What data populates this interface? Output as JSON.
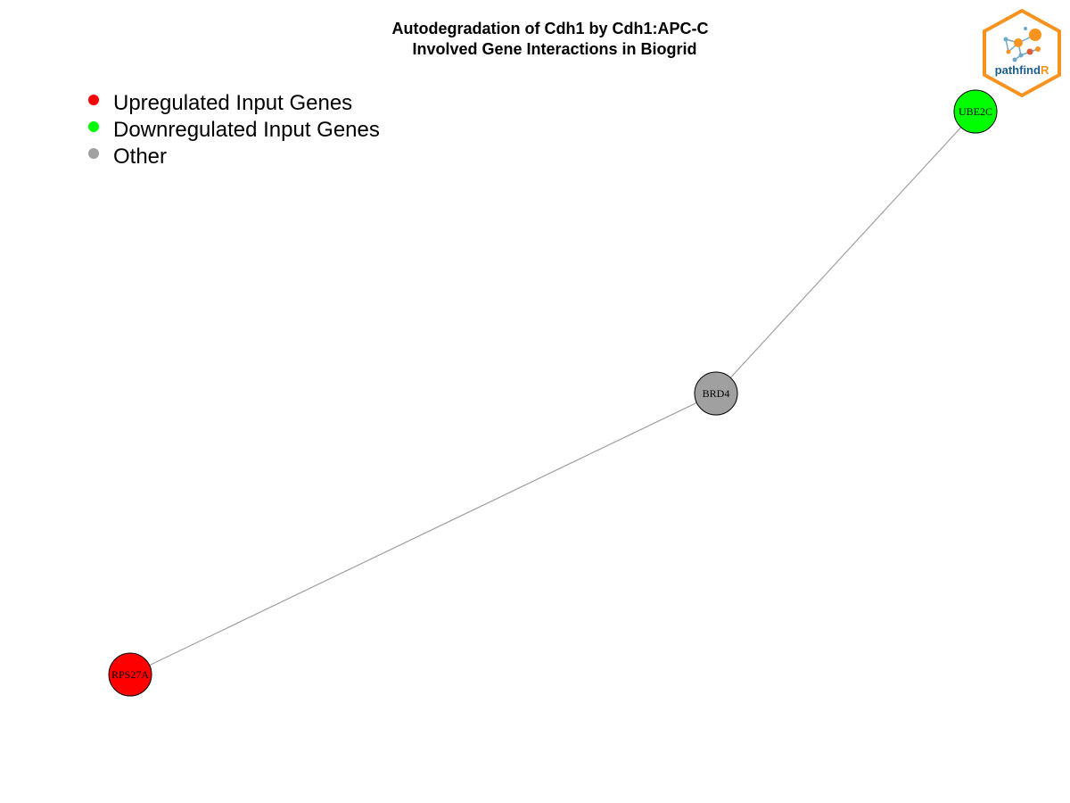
{
  "title": {
    "line1": "Autodegradation of Cdh1 by Cdh1:APC-C",
    "line2": "Involved Gene Interactions in Biogrid"
  },
  "legend": [
    {
      "label": "Upregulated Input Genes",
      "color": "#ff0000"
    },
    {
      "label": "Downregulated Input Genes",
      "color": "#00ff00"
    },
    {
      "label": "Other",
      "color": "#a0a0a0"
    }
  ],
  "network": {
    "nodes": [
      {
        "id": "UBE2C",
        "label": "UBE2C",
        "category": "downregulated",
        "color": "#00ff00"
      },
      {
        "id": "BRD4",
        "label": "BRD4",
        "category": "other",
        "color": "#a0a0a0"
      },
      {
        "id": "RPS27A",
        "label": "RPS27A",
        "category": "upregulated",
        "color": "#ff0000"
      }
    ],
    "edges": [
      {
        "source": "UBE2C",
        "target": "BRD4"
      },
      {
        "source": "BRD4",
        "target": "RPS27A"
      }
    ],
    "edge_color": "#a0a0a0"
  },
  "logo": {
    "text_main": "pathfind",
    "text_accent": "R",
    "color_main": "#1b5e8a",
    "color_accent": "#f7931e"
  }
}
